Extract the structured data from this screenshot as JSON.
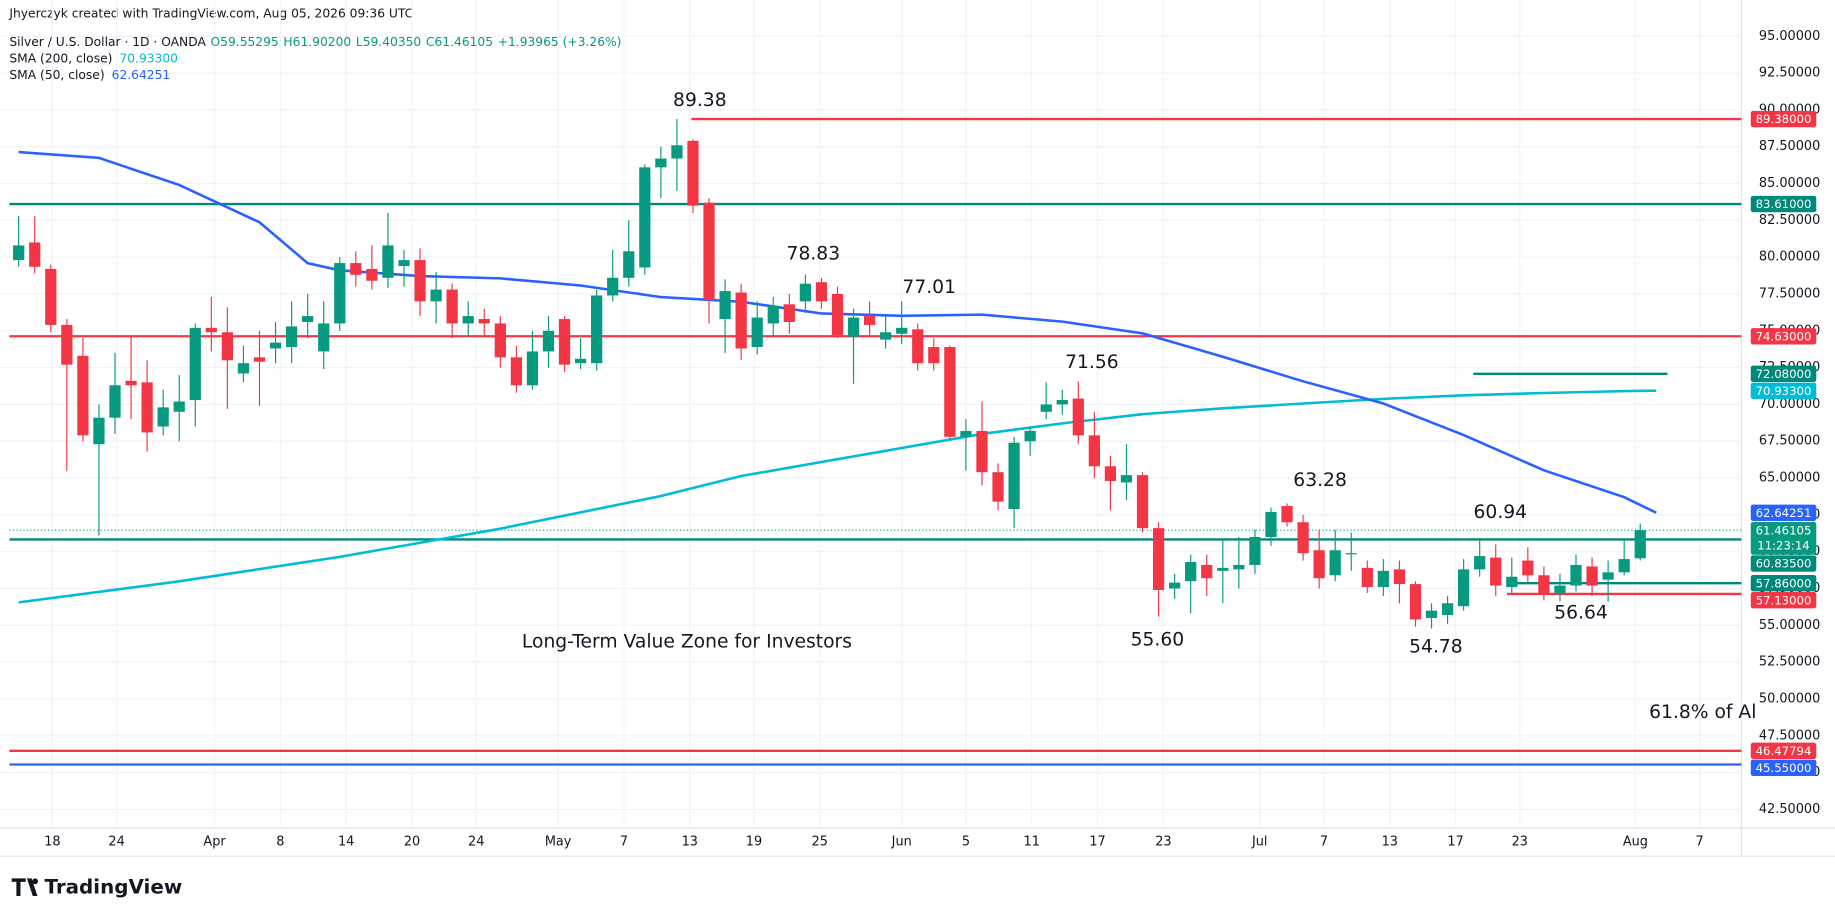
{
  "header": "Jhyerczyk created with TradingView.com, Aug 05, 2026 09:36 UTC",
  "footer": "TradingView",
  "chart_data": {
    "type": "candlestick",
    "legend": {
      "symbol": "Silver / U.S. Dollar · 1D · OANDA",
      "items": [
        "O59.55295",
        "H61.90200",
        "L59.40350",
        "C61.46105",
        "+1.93965 (+3.26%)"
      ]
    },
    "up_color": "#089981",
    "down_color": "#f23645",
    "xlim": [
      -0.58,
      107.3
    ],
    "xticks": [
      {
        "value": 2.1,
        "label": "18"
      },
      {
        "value": 6.1,
        "label": "24"
      },
      {
        "value": 12.2,
        "label": "Apr"
      },
      {
        "value": 16.3,
        "label": "8"
      },
      {
        "value": 20.4,
        "label": "14"
      },
      {
        "value": 24.5,
        "label": "20"
      },
      {
        "value": 28.5,
        "label": "24"
      },
      {
        "value": 33.6,
        "label": "May"
      },
      {
        "value": 37.7,
        "label": "7"
      },
      {
        "value": 41.8,
        "label": "13"
      },
      {
        "value": 45.8,
        "label": "19"
      },
      {
        "value": 49.9,
        "label": "25"
      },
      {
        "value": 55,
        "label": "Jun"
      },
      {
        "value": 59,
        "label": "5"
      },
      {
        "value": 63.1,
        "label": "11"
      },
      {
        "value": 67.2,
        "label": "17"
      },
      {
        "value": 71.3,
        "label": "23"
      },
      {
        "value": 77.3,
        "label": "Jul"
      },
      {
        "value": 81.3,
        "label": "7"
      },
      {
        "value": 85.4,
        "label": "13"
      },
      {
        "value": 89.5,
        "label": "17"
      },
      {
        "value": 93.5,
        "label": "23"
      },
      {
        "value": 100.7,
        "label": "Aug"
      },
      {
        "value": 104.7,
        "label": "7"
      }
    ],
    "ylim": [
      41.23,
      96.67
    ],
    "yticks": [
      {
        "value": 95,
        "label": "95.00000"
      },
      {
        "value": 92.5,
        "label": "92.50000"
      },
      {
        "value": 90,
        "label": "90.00000"
      },
      {
        "value": 87.5,
        "label": "87.50000"
      },
      {
        "value": 85,
        "label": "85.00000"
      },
      {
        "value": 82.5,
        "label": "82.50000"
      },
      {
        "value": 80,
        "label": "80.00000"
      },
      {
        "value": 77.5,
        "label": "77.50000"
      },
      {
        "value": 75,
        "label": "75.00000"
      },
      {
        "value": 72.5,
        "label": "72.50000"
      },
      {
        "value": 70,
        "label": "70.00000"
      },
      {
        "value": 67.5,
        "label": "67.50000"
      },
      {
        "value": 65,
        "label": "65.00000"
      },
      {
        "value": 62.5,
        "label": "62.50000"
      },
      {
        "value": 60,
        "label": "60.00000"
      },
      {
        "value": 57.5,
        "label": "57.50000"
      },
      {
        "value": 55,
        "label": "55.00000"
      },
      {
        "value": 52.5,
        "label": "52.50000"
      },
      {
        "value": 50,
        "label": "50.00000"
      },
      {
        "value": 47.5,
        "label": "47.50000"
      },
      {
        "value": 45,
        "label": "45.00000"
      },
      {
        "value": 42.5,
        "label": "42.50000"
      }
    ],
    "grid": true,
    "open": [
      79.8,
      81.0,
      79.2,
      75.4,
      73.3,
      67.3,
      69.1,
      71.6,
      71.5,
      68.5,
      69.5,
      70.3,
      75.2,
      74.9,
      72.1,
      73.2,
      73.8,
      73.9,
      75.6,
      73.6,
      75.5,
      79.6,
      79.2,
      78.6,
      79.4,
      79.8,
      77.0,
      77.8,
      75.5,
      75.8,
      75.5,
      73.2,
      71.3,
      73.6,
      75.8,
      72.8,
      72.8,
      77.4,
      78.6,
      79.3,
      86.1,
      86.7,
      87.9,
      83.7,
      75.8,
      77.6,
      73.9,
      75.5,
      76.8,
      77.0,
      78.3,
      77.5,
      74.6,
      76.0,
      74.4,
      74.8,
      75.1,
      73.9,
      73.9,
      67.8,
      68.2,
      65.4,
      62.9,
      67.5,
      69.5,
      70.0,
      70.4,
      67.9,
      65.8,
      64.7,
      65.2,
      61.6,
      57.5,
      58.0,
      59.1,
      58.7,
      58.8,
      59.1,
      61.0,
      63.1,
      62.0,
      60.1,
      58.4,
      59.9,
      58.9,
      57.6,
      58.8,
      57.8,
      55.5,
      55.7,
      56.3,
      58.8,
      59.6,
      57.6,
      59.4,
      58.4,
      57.2,
      57.7,
      59.0,
      58.1,
      58.6,
      59.55295
    ],
    "high": [
      82.8,
      82.8,
      79.5,
      75.8,
      74.5,
      70.0,
      73.5,
      74.6,
      73.0,
      71.0,
      72.0,
      75.5,
      77.3,
      76.6,
      74.0,
      75.0,
      75.6,
      77.0,
      77.5,
      77.0,
      80.0,
      80.4,
      80.8,
      83.0,
      80.5,
      80.6,
      79.0,
      78.2,
      77.0,
      76.5,
      76.0,
      74.0,
      75.0,
      76.0,
      76.0,
      74.5,
      77.8,
      80.5,
      82.5,
      86.3,
      87.5,
      89.38,
      88.0,
      84.0,
      78.5,
      78.2,
      77.0,
      77.3,
      77.5,
      78.83,
      78.6,
      78.0,
      76.5,
      77.0,
      76.0,
      77.01,
      75.5,
      74.5,
      74.0,
      69.0,
      70.2,
      66.0,
      67.8,
      68.5,
      71.5,
      71.0,
      71.56,
      69.5,
      66.5,
      67.3,
      65.4,
      62.0,
      58.5,
      59.8,
      59.8,
      60.8,
      61.0,
      61.5,
      63.0,
      63.28,
      62.5,
      61.5,
      61.5,
      61.3,
      59.4,
      59.5,
      59.4,
      58.0,
      56.5,
      57.0,
      59.5,
      60.94,
      60.5,
      59.6,
      60.3,
      59.0,
      58.5,
      59.8,
      59.6,
      59.4,
      60.8,
      61.902
    ],
    "low": [
      79.35,
      78.9,
      74.9,
      65.5,
      67.5,
      61.1,
      68.0,
      69.0,
      66.8,
      67.9,
      67.5,
      68.5,
      73.6,
      69.7,
      71.5,
      69.9,
      72.8,
      72.8,
      74.5,
      72.4,
      75.0,
      78.0,
      77.8,
      77.9,
      78.0,
      76.0,
      75.5,
      74.5,
      74.6,
      74.6,
      72.5,
      70.8,
      71.0,
      72.5,
      72.2,
      72.4,
      72.3,
      77.0,
      78.0,
      78.8,
      84.0,
      84.5,
      83.0,
      75.5,
      73.5,
      73.0,
      73.4,
      74.6,
      74.8,
      76.2,
      76.5,
      74.5,
      71.4,
      74.7,
      73.8,
      74.1,
      72.3,
      72.3,
      67.6,
      65.5,
      64.5,
      62.8,
      61.6,
      66.5,
      69.0,
      69.3,
      67.3,
      65.0,
      62.8,
      63.5,
      61.3,
      55.6,
      56.8,
      55.8,
      57.0,
      56.5,
      57.5,
      58.5,
      60.4,
      61.7,
      59.4,
      57.5,
      58.0,
      58.7,
      57.2,
      57.0,
      56.5,
      54.9,
      54.78,
      55.1,
      56.0,
      58.3,
      57.0,
      57.2,
      57.9,
      56.7,
      56.64,
      57.3,
      57.0,
      56.6,
      58.4,
      59.4035
    ],
    "close": [
      80.8,
      79.35,
      75.4,
      72.7,
      67.9,
      69.1,
      71.3,
      71.3,
      68.1,
      69.8,
      70.2,
      75.2,
      74.9,
      73.0,
      72.8,
      72.9,
      74.2,
      75.3,
      76.0,
      75.5,
      79.6,
      78.8,
      78.4,
      80.8,
      79.8,
      77.0,
      77.8,
      75.5,
      76.0,
      75.5,
      73.2,
      71.3,
      73.6,
      75.0,
      72.7,
      73.1,
      77.4,
      78.6,
      80.4,
      86.1,
      86.7,
      87.6,
      83.5,
      77.1,
      77.7,
      73.8,
      75.9,
      76.7,
      75.6,
      78.2,
      77.0,
      74.7,
      75.9,
      75.4,
      74.9,
      75.2,
      72.8,
      72.8,
      67.8,
      68.2,
      65.4,
      63.4,
      67.4,
      68.2,
      70.0,
      70.3,
      67.9,
      65.8,
      64.8,
      65.2,
      61.6,
      57.4,
      57.9,
      59.3,
      58.2,
      58.9,
      59.1,
      61.0,
      62.7,
      62.0,
      59.9,
      58.2,
      60.1,
      59.9,
      57.6,
      58.7,
      57.8,
      55.4,
      56.0,
      56.5,
      58.8,
      59.7,
      57.7,
      58.3,
      58.4,
      57.1,
      57.7,
      59.1,
      57.7,
      58.6,
      59.5,
      61.46105
    ],
    "sma": [
      {
        "name": "SMA (200, close)",
        "color": "#00bcd4",
        "value_label": "70.93300",
        "x": [
          0,
          10,
          20,
          30,
          40,
          45,
          50,
          55,
          60,
          65,
          70,
          75,
          80,
          85,
          90,
          95,
          100,
          102
        ],
        "values": [
          56.56,
          57.99,
          59.65,
          61.56,
          63.78,
          65.14,
          66.09,
          67.04,
          68.0,
          68.71,
          69.34,
          69.74,
          70.06,
          70.38,
          70.62,
          70.78,
          70.9,
          70.933
        ]
      },
      {
        "name": "SMA (50, close)",
        "color": "#2962ff",
        "value_label": "62.64251",
        "x": [
          0,
          5,
          10,
          15,
          18,
          20,
          25,
          30,
          35,
          40,
          45,
          50,
          55,
          60,
          65,
          70,
          75,
          80,
          85,
          90,
          95,
          100,
          102
        ],
        "values": [
          87.14,
          86.74,
          84.91,
          82.37,
          79.59,
          79.11,
          78.72,
          78.56,
          78.08,
          77.29,
          76.97,
          76.18,
          76.02,
          76.1,
          75.62,
          74.83,
          73.24,
          71.57,
          70.06,
          67.92,
          65.53,
          63.7,
          62.64251
        ]
      }
    ],
    "levels": [
      {
        "value": 89.38,
        "label": "89.38000",
        "color": "#f23645",
        "start": 41.9
      },
      {
        "value": 83.61,
        "label": "83.61000",
        "color": "#00897b"
      },
      {
        "value": 74.63,
        "label": "74.63000",
        "color": "#f23645"
      },
      {
        "value": 72.08,
        "label": "72.08000",
        "color": "#00897b",
        "start": 90.6,
        "end": 102.7
      },
      {
        "value": 60.835,
        "label": "60.83500",
        "color": "#00897b"
      },
      {
        "value": 57.86,
        "label": "57.86000",
        "color": "#00897b",
        "start": 92.7
      },
      {
        "value": 57.13,
        "label": "57.13000",
        "color": "#f23645",
        "start": 92.7
      },
      {
        "value": 46.47794,
        "label": "46.47794",
        "color": "#f23645"
      },
      {
        "value": 45.55,
        "label": "45.55000",
        "color": "#2962ff"
      }
    ],
    "last_price": {
      "value": 61.46105,
      "label": "61.46105",
      "countdown": "11:23:14",
      "color": "#089981"
    },
    "annotations": [
      "89.38",
      "78.83",
      "77.01",
      "71.56",
      "63.28",
      "60.94",
      "55.60",
      "54.78",
      "56.64",
      "Long-Term Value Zone for Investors",
      "61.8% of Al"
    ]
  }
}
